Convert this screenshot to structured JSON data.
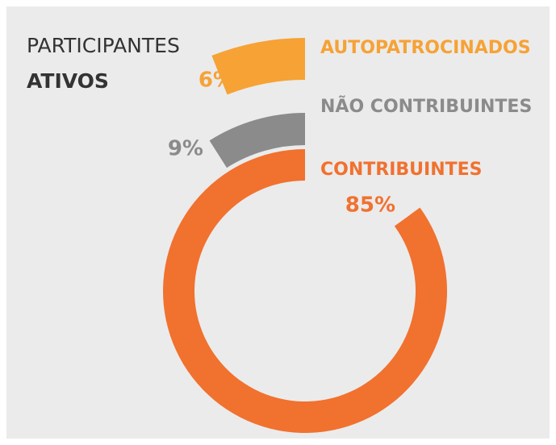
{
  "chart_data": {
    "type": "radial_bar",
    "title": [
      "PARTICIPANTES",
      "ATIVOS"
    ],
    "categories": [
      "CONTRIBUINTES",
      "NÃO CONTRIBUINTES",
      "AUTOPATROCINADOS"
    ],
    "values": [
      85,
      9,
      6
    ],
    "value_labels": [
      "85%",
      "9%",
      "6%"
    ],
    "colors": [
      "#f1712f",
      "#8b8b8b",
      "#f6a235"
    ]
  }
}
